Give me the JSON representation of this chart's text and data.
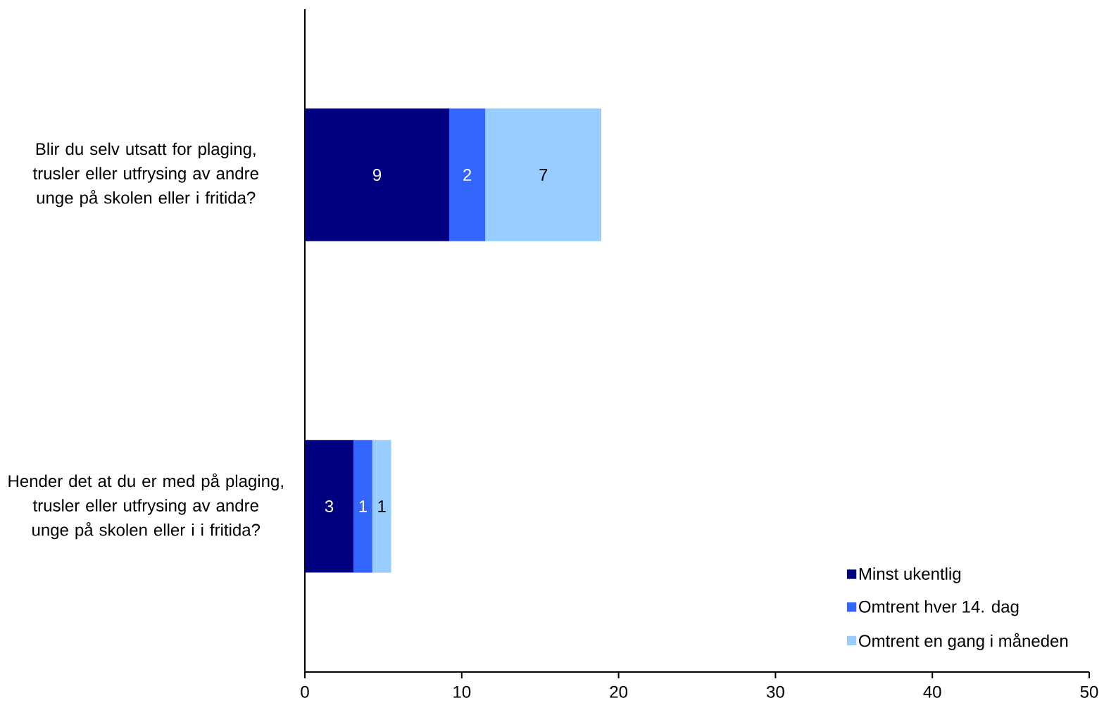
{
  "chart_data": {
    "type": "bar",
    "orientation": "horizontal",
    "stacked": true,
    "categories": [
      "Blir du selv utsatt for plaging, trusler eller utfrysing av andre unge på skolen eller i fritida?",
      "Hender det at du er med på plaging, trusler eller utfrysing av andre unge på skolen eller i i fritida?"
    ],
    "series": [
      {
        "name": "Minst ukentlig",
        "color": "#000080",
        "values": [
          9.2,
          3.1
        ],
        "value_labels": [
          "9",
          "3"
        ]
      },
      {
        "name": "Omtrent hver 14. dag",
        "color": "#3366ff",
        "values": [
          2.3,
          1.2
        ],
        "value_labels": [
          "2",
          "1"
        ]
      },
      {
        "name": "Omtrent en gang i måneden",
        "color": "#99ccff",
        "values": [
          7.4,
          1.2
        ],
        "value_labels": [
          "7",
          "1"
        ]
      }
    ],
    "xlim": [
      0,
      50
    ],
    "xticks": [
      0,
      10,
      20,
      30,
      40,
      50
    ],
    "legend": "bottom right"
  }
}
